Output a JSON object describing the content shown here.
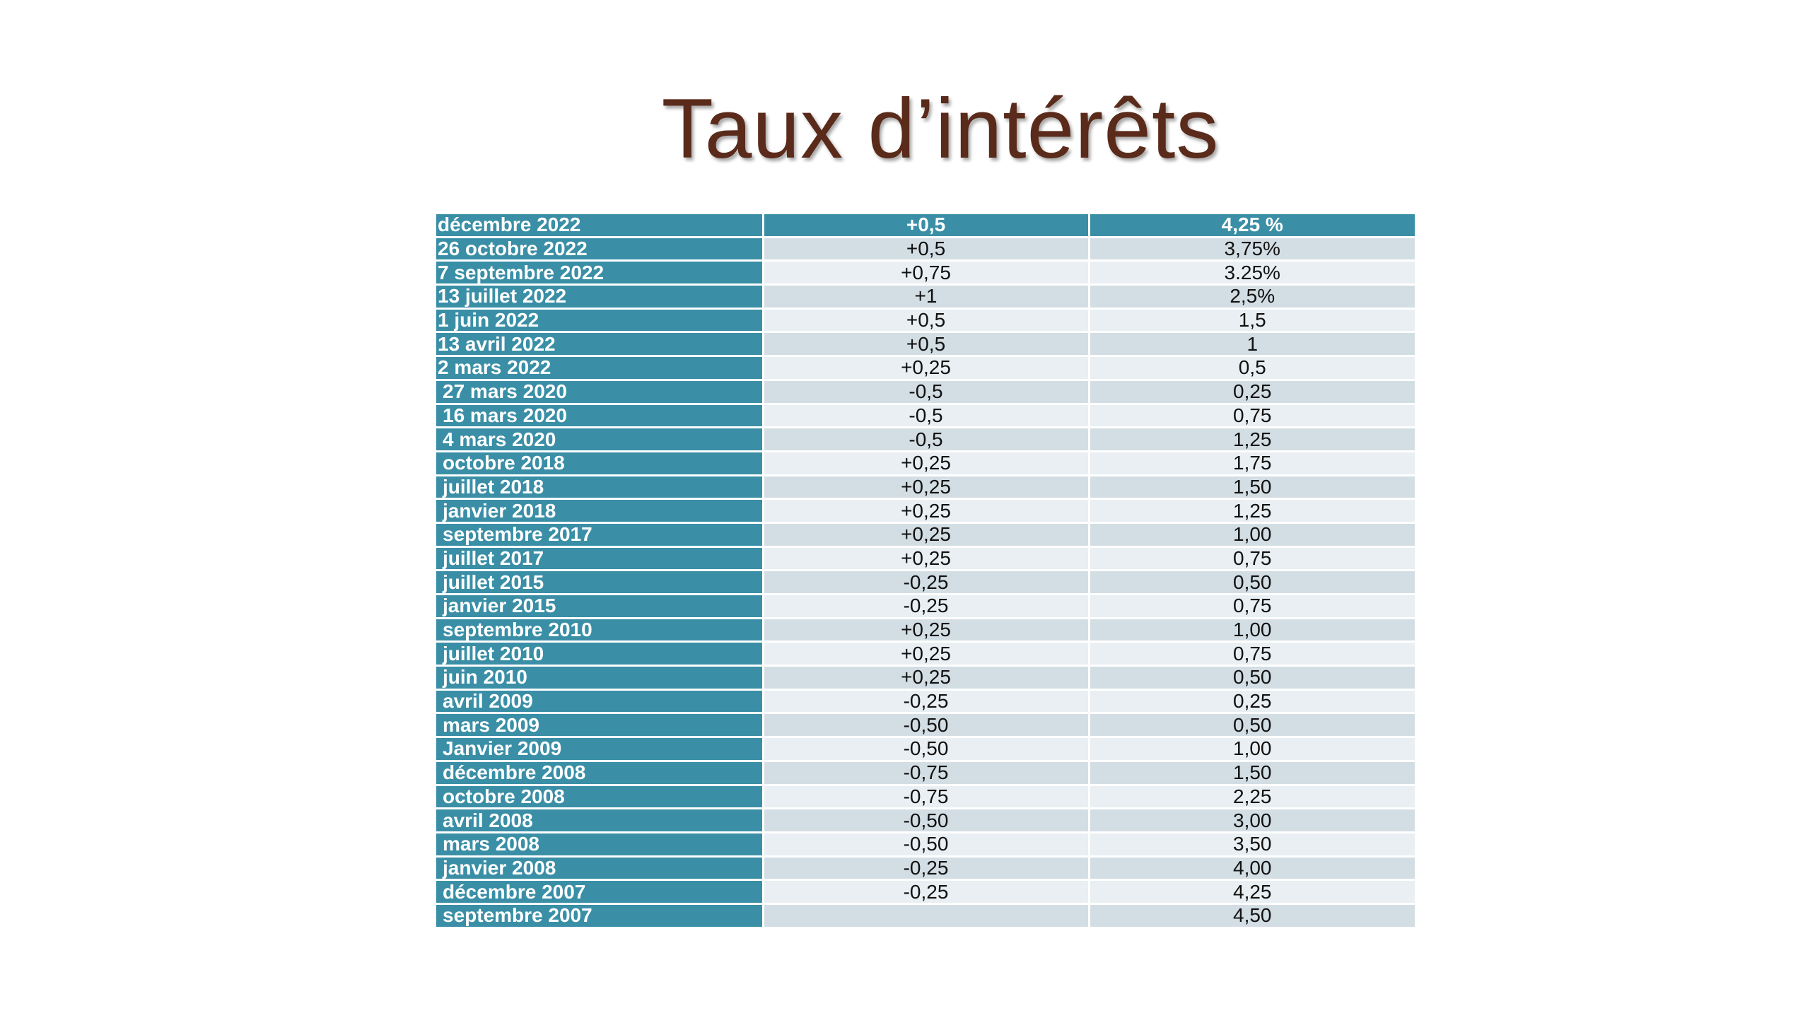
{
  "title": "Taux d’intérêts",
  "header": {
    "date": "décembre 2022",
    "change": "+0,5",
    "rate": "4,25 %"
  },
  "rows": [
    {
      "date": "26 octobre 2022",
      "change": "+0,5",
      "rate": "3,75%",
      "indent": false
    },
    {
      "date": "7 septembre 2022",
      "change": "+0,75",
      "rate": "3.25%",
      "indent": false
    },
    {
      "date": "13 juillet 2022",
      "change": "+1",
      "rate": "2,5%",
      "indent": false
    },
    {
      "date": "1 juin 2022",
      "change": "+0,5",
      "rate": "1,5",
      "indent": false
    },
    {
      "date": "13 avril 2022",
      "change": "+0,5",
      "rate": "1",
      "indent": false
    },
    {
      "date": "2 mars 2022",
      "change": "+0,25",
      "rate": "0,5",
      "indent": false
    },
    {
      "date": "27 mars 2020",
      "change": "-0,5",
      "rate": "0,25",
      "indent": true
    },
    {
      "date": "16 mars 2020",
      "change": "-0,5",
      "rate": "0,75",
      "indent": true
    },
    {
      "date": "4 mars 2020",
      "change": "-0,5",
      "rate": "1,25",
      "indent": true
    },
    {
      "date": "octobre 2018",
      "change": "+0,25",
      "rate": "1,75",
      "indent": true
    },
    {
      "date": "juillet 2018",
      "change": "+0,25",
      "rate": "1,50",
      "indent": true
    },
    {
      "date": "janvier 2018",
      "change": "+0,25",
      "rate": "1,25",
      "indent": true
    },
    {
      "date": "septembre 2017",
      "change": "+0,25",
      "rate": "1,00",
      "indent": true
    },
    {
      "date": "juillet 2017",
      "change": "+0,25",
      "rate": "0,75",
      "indent": true
    },
    {
      "date": "juillet 2015",
      "change": "-0,25",
      "rate": "0,50",
      "indent": true
    },
    {
      "date": "janvier 2015",
      "change": "-0,25",
      "rate": "0,75",
      "indent": true
    },
    {
      "date": "septembre 2010",
      "change": "+0,25",
      "rate": "1,00",
      "indent": true
    },
    {
      "date": "juillet 2010",
      "change": "+0,25",
      "rate": "0,75",
      "indent": true
    },
    {
      "date": "juin 2010",
      "change": "+0,25",
      "rate": "0,50",
      "indent": true
    },
    {
      "date": "avril 2009",
      "change": "-0,25",
      "rate": "0,25",
      "indent": true
    },
    {
      "date": "mars 2009",
      "change": "-0,50",
      "rate": "0,50",
      "indent": true
    },
    {
      "date": "Janvier 2009",
      "change": "-0,50",
      "rate": "1,00",
      "indent": true
    },
    {
      "date": "décembre 2008",
      "change": "-0,75",
      "rate": "1,50",
      "indent": true
    },
    {
      "date": "octobre 2008",
      "change": "-0,75",
      "rate": "2,25",
      "indent": true
    },
    {
      "date": "avril 2008",
      "change": "-0,50",
      "rate": "3,00",
      "indent": true
    },
    {
      "date": "mars 2008",
      "change": "-0,50",
      "rate": "3,50",
      "indent": true
    },
    {
      "date": "janvier 2008",
      "change": "-0,25",
      "rate": "4,00",
      "indent": true
    },
    {
      "date": "décembre 2007",
      "change": "-0,25",
      "rate": "4,25",
      "indent": true
    },
    {
      "date": "septembre 2007",
      "change": "",
      "rate": "4,50",
      "indent": true
    }
  ],
  "colors": {
    "title": "#5a2a1a",
    "date_cell": "#3a8fa6",
    "row_dark": "#d3dee4",
    "row_light": "#e9eff2"
  }
}
